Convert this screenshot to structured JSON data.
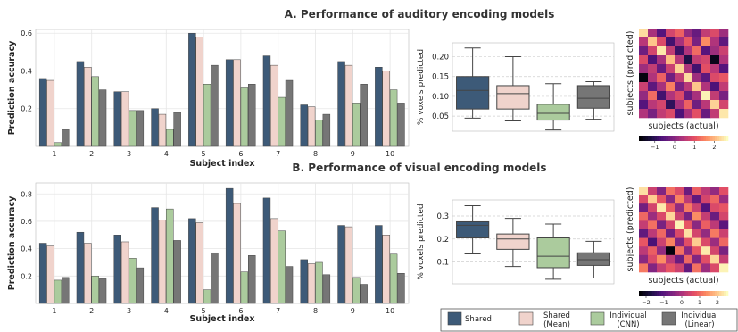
{
  "colors": {
    "shared": "#3d5a78",
    "shared_mean": "#f0d3cc",
    "individual_cnn": "#abcb9d",
    "individual_linear": "#767676",
    "grid": "#e6e6e6",
    "heat_low": "#000004",
    "heat_mid": "#b73779",
    "heat_high": "#fcfdbf"
  },
  "legend": {
    "items": [
      {
        "key": "shared",
        "label_lines": [
          "Shared"
        ]
      },
      {
        "key": "shared_mean",
        "label_lines": [
          "Shared",
          "(Mean)"
        ]
      },
      {
        "key": "individual_cnn",
        "label_lines": [
          "Individual",
          "(CNN)"
        ]
      },
      {
        "key": "individual_linear",
        "label_lines": [
          "Individual",
          "(Linear)"
        ]
      }
    ]
  },
  "chart_data": [
    {
      "id": "auditory-bar",
      "type": "bar",
      "title": "A. Performance of auditory encoding models",
      "xlabel": "Subject index",
      "ylabel": "Prediction accuracy",
      "ylim": [
        0,
        0.62
      ],
      "yticks": [
        0.2,
        0.4,
        0.6
      ],
      "ytick_labels": [
        "0.2",
        "0.4",
        "0.6"
      ],
      "categories": [
        "1",
        "2",
        "3",
        "4",
        "5",
        "6",
        "7",
        "8",
        "9",
        "10"
      ],
      "series": [
        {
          "key": "shared",
          "values": [
            0.36,
            0.45,
            0.29,
            0.2,
            0.6,
            0.46,
            0.48,
            0.22,
            0.45,
            0.42
          ]
        },
        {
          "key": "shared_mean",
          "values": [
            0.35,
            0.42,
            0.29,
            0.17,
            0.58,
            0.46,
            0.43,
            0.21,
            0.43,
            0.4
          ]
        },
        {
          "key": "individual_cnn",
          "values": [
            0.02,
            0.37,
            0.19,
            0.09,
            0.33,
            0.31,
            0.26,
            0.14,
            0.23,
            0.3
          ]
        },
        {
          "key": "individual_linear",
          "values": [
            0.09,
            0.3,
            0.19,
            0.18,
            0.43,
            0.33,
            0.35,
            0.17,
            0.33,
            0.23
          ]
        }
      ]
    },
    {
      "id": "auditory-box",
      "type": "box",
      "ylabel": "% voxels predicted",
      "ylim": [
        0.012,
        0.235
      ],
      "yticks": [
        0.05,
        0.1,
        0.15,
        0.2
      ],
      "ytick_labels": [
        "0.05",
        "0.10",
        "0.15",
        "0.20"
      ],
      "boxes": [
        {
          "key": "shared",
          "whisker_low": 0.045,
          "q1": 0.068,
          "median": 0.115,
          "q3": 0.15,
          "whisker_high": 0.222
        },
        {
          "key": "shared_mean",
          "whisker_low": 0.038,
          "q1": 0.068,
          "median": 0.107,
          "q3": 0.127,
          "whisker_high": 0.2
        },
        {
          "key": "individual_cnn",
          "whisker_low": 0.015,
          "q1": 0.04,
          "median": 0.057,
          "q3": 0.08,
          "whisker_high": 0.132
        },
        {
          "key": "individual_linear",
          "whisker_low": 0.042,
          "q1": 0.07,
          "median": 0.095,
          "q3": 0.127,
          "whisker_high": 0.137
        }
      ]
    },
    {
      "id": "auditory-heatmap",
      "type": "heatmap",
      "xlabel": "subjects (actual)",
      "ylabel": "subjects (predicted)",
      "colorbar_ticks": [
        -1,
        0,
        1,
        2
      ],
      "colorbar_tick_labels": [
        "−1",
        "0",
        "1",
        "2"
      ],
      "colorbar_range": [
        -1.8,
        2.7
      ],
      "values": [
        [
          2.4,
          0.3,
          -0.6,
          0.8,
          1.2,
          0.1,
          -0.4,
          0.6,
          0.9,
          0.2
        ],
        [
          0.5,
          2.2,
          0.9,
          -0.8,
          0.3,
          1.1,
          -0.2,
          1.6,
          0.4,
          -0.5
        ],
        [
          -0.3,
          0.8,
          2.5,
          0.6,
          -0.9,
          0.4,
          1.3,
          -0.6,
          0.2,
          0.7
        ],
        [
          0.9,
          -0.7,
          0.3,
          2.1,
          0.5,
          -1.2,
          0.6,
          0.8,
          -1.6,
          0.4
        ],
        [
          0.2,
          0.6,
          -0.4,
          0.7,
          2.3,
          0.4,
          -0.8,
          1.0,
          0.5,
          -0.6
        ],
        [
          -1.7,
          0.4,
          1.2,
          -0.3,
          0.6,
          2.4,
          0.2,
          -0.5,
          0.9,
          1.1
        ],
        [
          0.7,
          -0.5,
          0.3,
          1.5,
          -0.2,
          0.5,
          2.2,
          0.4,
          -0.7,
          0.6
        ],
        [
          0.1,
          1.3,
          -0.8,
          0.4,
          0.9,
          -0.4,
          0.3,
          2.6,
          0.6,
          -0.2
        ],
        [
          -0.6,
          0.5,
          0.8,
          -1.0,
          0.3,
          1.2,
          -0.3,
          0.5,
          2.3,
          0.8
        ],
        [
          0.4,
          -0.2,
          0.6,
          0.9,
          -0.7,
          0.3,
          1.0,
          -0.4,
          0.6,
          2.5
        ]
      ]
    },
    {
      "id": "visual-bar",
      "type": "bar",
      "title": "B. Performance of visual encoding models",
      "xlabel": "Subject index",
      "ylabel": "Prediction accuracy",
      "ylim": [
        0,
        0.88
      ],
      "yticks": [
        0.2,
        0.4,
        0.6,
        0.8
      ],
      "ytick_labels": [
        "0.2",
        "0.4",
        "0.6",
        "0.8"
      ],
      "categories": [
        "1",
        "2",
        "3",
        "4",
        "5",
        "6",
        "7",
        "8",
        "9",
        "10"
      ],
      "series": [
        {
          "key": "shared",
          "values": [
            0.44,
            0.52,
            0.5,
            0.7,
            0.62,
            0.84,
            0.77,
            0.32,
            0.57,
            0.57
          ]
        },
        {
          "key": "shared_mean",
          "values": [
            0.42,
            0.44,
            0.45,
            0.61,
            0.59,
            0.73,
            0.62,
            0.29,
            0.56,
            0.5
          ]
        },
        {
          "key": "individual_cnn",
          "values": [
            0.17,
            0.2,
            0.33,
            0.69,
            0.1,
            0.23,
            0.53,
            0.3,
            0.19,
            0.36
          ]
        },
        {
          "key": "individual_linear",
          "values": [
            0.19,
            0.18,
            0.26,
            0.46,
            0.37,
            0.35,
            0.27,
            0.21,
            0.14,
            0.22
          ]
        }
      ]
    },
    {
      "id": "visual-box",
      "type": "box",
      "ylabel": "% voxels predicted",
      "ylim": [
        0.005,
        0.37
      ],
      "yticks": [
        0.1,
        0.2,
        0.3
      ],
      "ytick_labels": [
        "0.1",
        "0.2",
        "0.3"
      ],
      "boxes": [
        {
          "key": "shared",
          "whisker_low": 0.135,
          "q1": 0.205,
          "median": 0.26,
          "q3": 0.275,
          "whisker_high": 0.345
        },
        {
          "key": "shared_mean",
          "whisker_low": 0.08,
          "q1": 0.155,
          "median": 0.2,
          "q3": 0.222,
          "whisker_high": 0.29
        },
        {
          "key": "individual_cnn",
          "whisker_low": 0.025,
          "q1": 0.075,
          "median": 0.125,
          "q3": 0.205,
          "whisker_high": 0.265
        },
        {
          "key": "individual_linear",
          "whisker_low": 0.03,
          "q1": 0.085,
          "median": 0.11,
          "q3": 0.14,
          "whisker_high": 0.19
        }
      ]
    },
    {
      "id": "visual-heatmap",
      "type": "heatmap",
      "xlabel": "subjects (actual)",
      "ylabel": "subjects (predicted)",
      "colorbar_ticks": [
        -2,
        -1,
        0,
        1,
        2
      ],
      "colorbar_tick_labels": [
        "−2",
        "−1",
        "0",
        "1",
        "2"
      ],
      "colorbar_range": [
        -2.4,
        2.6
      ],
      "values": [
        [
          2.3,
          0.4,
          -0.5,
          1.1,
          0.6,
          -0.8,
          0.9,
          0.2,
          -0.3,
          0.7
        ],
        [
          0.6,
          2.1,
          0.8,
          -0.4,
          1.3,
          0.2,
          -0.9,
          0.5,
          1.0,
          -0.2
        ],
        [
          -0.7,
          0.5,
          2.4,
          0.9,
          -0.3,
          1.2,
          0.4,
          -1.1,
          0.6,
          0.8
        ],
        [
          1.0,
          -0.2,
          0.6,
          2.2,
          0.4,
          -0.6,
          1.4,
          0.3,
          -0.8,
          0.5
        ],
        [
          0.3,
          1.1,
          -0.6,
          0.5,
          2.5,
          0.8,
          -0.4,
          0.9,
          0.2,
          -1.0
        ],
        [
          -0.9,
          0.2,
          1.0,
          -0.7,
          0.6,
          2.3,
          0.5,
          -0.3,
          1.2,
          0.4
        ],
        [
          0.8,
          -1.2,
          0.4,
          1.3,
          -0.5,
          0.7,
          2.1,
          0.6,
          -0.2,
          1.0
        ],
        [
          0.2,
          0.9,
          -0.3,
          -2.3,
          1.1,
          -0.4,
          0.8,
          2.4,
          0.5,
          -0.6
        ],
        [
          -0.4,
          0.6,
          1.4,
          0.2,
          -0.8,
          1.0,
          -0.5,
          0.7,
          2.2,
          0.3
        ],
        [
          1.2,
          -0.5,
          0.3,
          0.8,
          0.4,
          -0.9,
          1.1,
          -0.2,
          0.6,
          2.5
        ]
      ]
    }
  ]
}
